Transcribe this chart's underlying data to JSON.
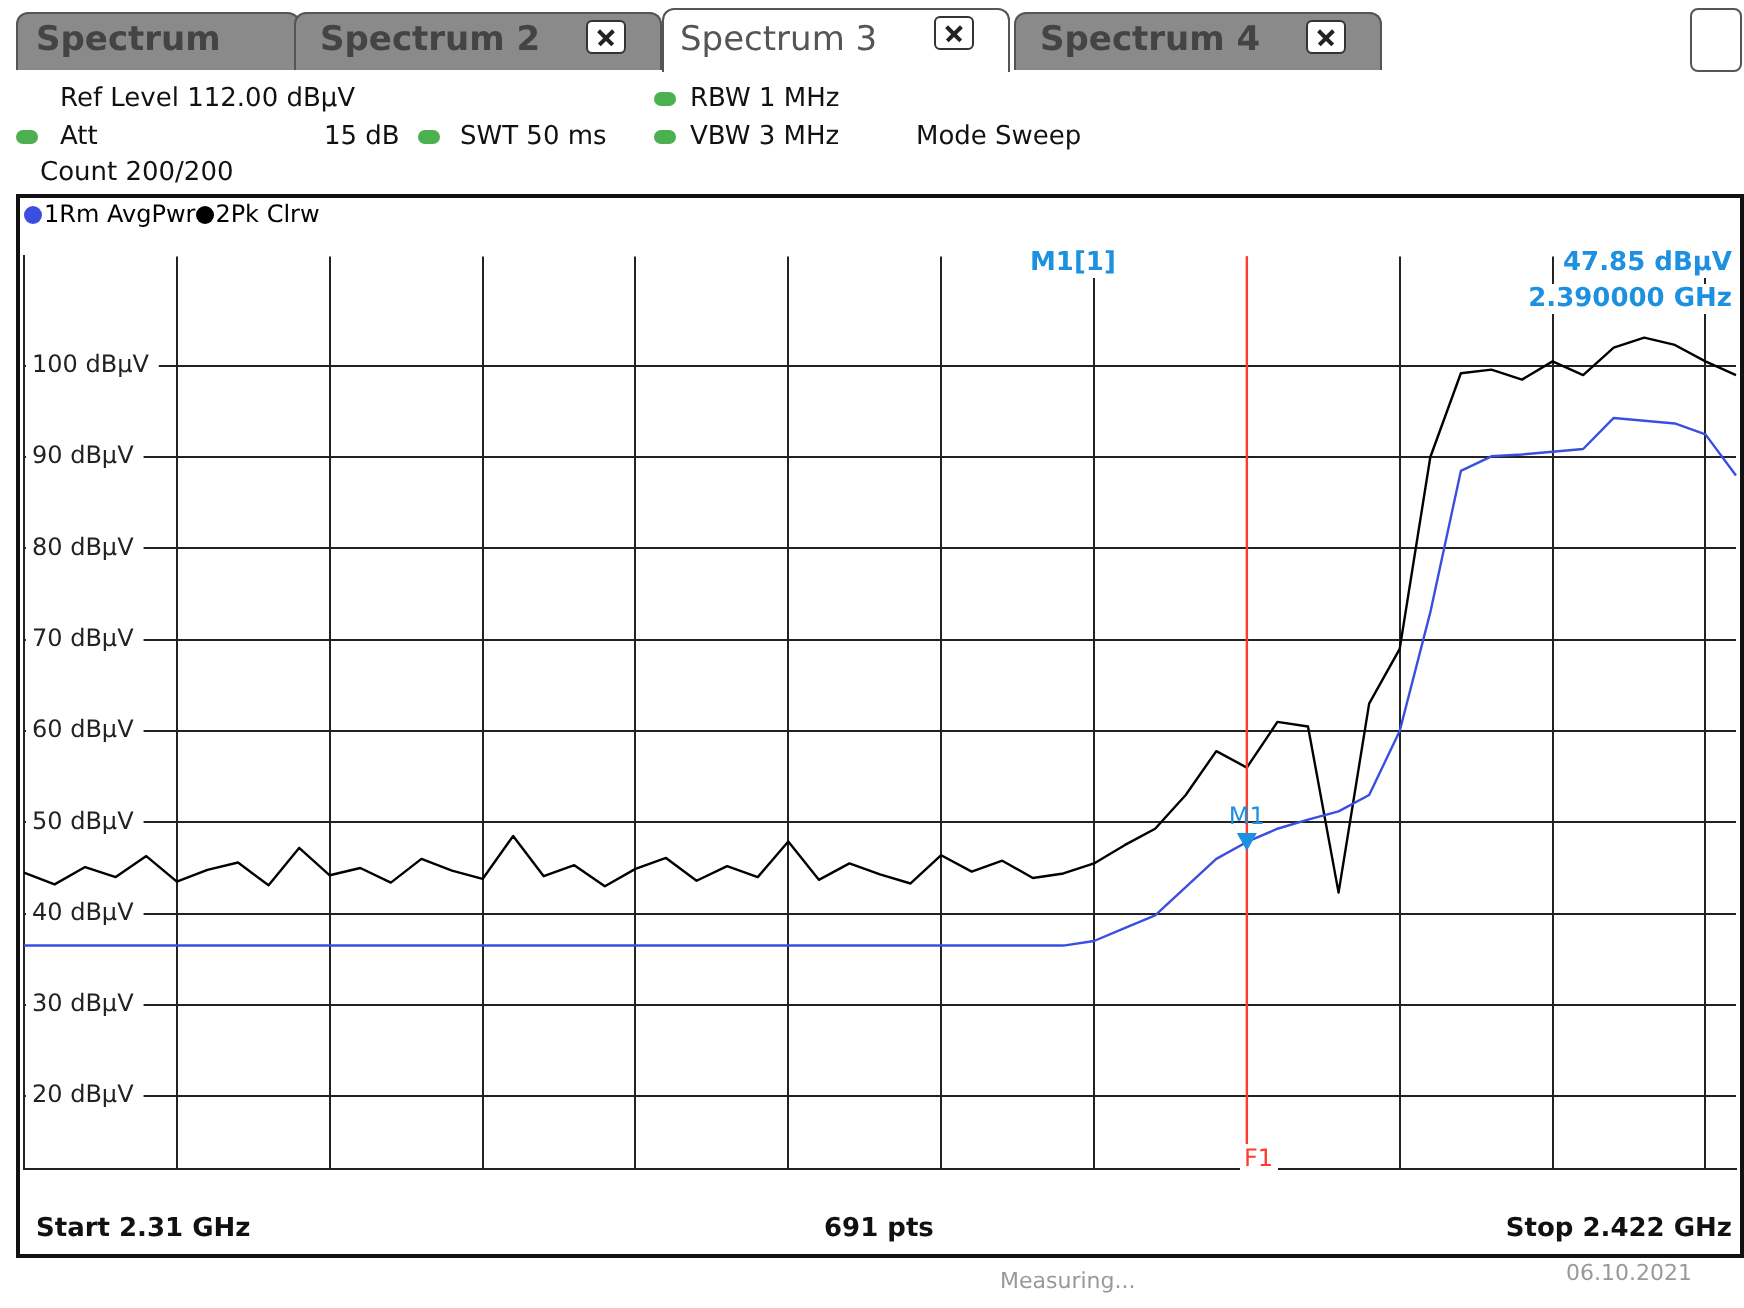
{
  "chart_data": {
    "type": "line",
    "annotations": [
      "Spectrum",
      "Spectrum 2",
      "Spectrum 3",
      "Spectrum 4",
      "Ref Level 112.00 dBµV",
      "Att",
      "15 dB",
      "SWT 50 ms",
      "RBW 1 MHz",
      "VBW 3 MHz",
      "Mode Sweep",
      "Count 200/200",
      "M1[1]",
      "47.85 dBµV",
      "2.390000 GHz",
      "Start 2.31 GHz",
      "691 pts",
      "Stop 2.422 GHz",
      "Measuring...",
      "06.10.2021",
      "F1",
      {
        "text": "M1",
        "y": 47.85
      }
    ],
    "categories": [
      null,
      null,
      null,
      null,
      null,
      null,
      null,
      null,
      null,
      null,
      null,
      null,
      null,
      null,
      null,
      null,
      null,
      null,
      null,
      null,
      null,
      null,
      null,
      null,
      null,
      null,
      null,
      null,
      null,
      null,
      null,
      null,
      null,
      null,
      null,
      null,
      null,
      null,
      null,
      null,
      null,
      null,
      null,
      null,
      null,
      null,
      null,
      null,
      null,
      null,
      null,
      null,
      null,
      null,
      null,
      null,
      null
    ],
    "series": [
      {
        "name": "1Rm AvgPwr",
        "color": "#3a4fe0",
        "values": [
          36.5,
          36.5,
          36.5,
          36.5,
          36.5,
          36.5,
          36.5,
          36.5,
          36.5,
          36.5,
          36.5,
          36.5,
          36.5,
          36.5,
          36.5,
          36.5,
          36.5,
          36.5,
          36.5,
          36.5,
          36.5,
          36.5,
          36.5,
          36.5,
          36.5,
          36.5,
          36.5,
          36.5,
          36.5,
          36.5,
          36.5,
          36.5,
          36.5,
          36.5,
          36.5,
          37,
          38.4,
          39.8,
          42.9,
          46,
          47.85,
          49.3,
          50.3,
          51.2,
          53,
          60,
          73,
          88.5,
          90.1,
          90.3,
          90.6,
          90.9,
          94.3,
          94,
          93.7,
          92.5,
          88
        ]
      },
      {
        "name": "2Pk Clrw",
        "color": "#000000",
        "values": [
          44.5,
          43.2,
          45.1,
          44,
          46.3,
          43.5,
          44.8,
          45.6,
          43.1,
          47.2,
          44.2,
          45,
          43.4,
          46,
          44.7,
          43.8,
          48.5,
          44.1,
          45.3,
          43,
          44.9,
          46.1,
          43.6,
          45.2,
          44,
          47.9,
          43.7,
          45.5,
          44.3,
          43.3,
          46.4,
          44.6,
          45.8,
          43.9,
          44.4,
          45.5,
          47.5,
          49.3,
          53,
          57.8,
          56,
          61,
          60.5,
          42.3,
          63,
          69,
          90,
          99.2,
          99.6,
          98.5,
          100.5,
          99,
          102,
          103.1,
          102.3,
          100.5,
          99
        ]
      }
    ],
    "ylim": [
      12,
      112
    ],
    "yticks": [
      {
        "value": 20,
        "label": "20 dBµV"
      },
      {
        "value": 30,
        "label": "30 dBµV"
      },
      {
        "value": 40,
        "label": "40 dBµV"
      },
      {
        "value": 50,
        "label": "50 dBµV"
      },
      {
        "value": 60,
        "label": "60 dBµV"
      },
      {
        "value": 70,
        "label": "70 dBµV"
      },
      {
        "value": 80,
        "label": "80 dBµV"
      },
      {
        "value": 90,
        "label": "90 dBµV"
      },
      {
        "value": 100,
        "label": "100 dBµV"
      }
    ],
    "grid": true,
    "legend": "top left",
    "marker": "none",
    "line_style": "solid"
  }
}
